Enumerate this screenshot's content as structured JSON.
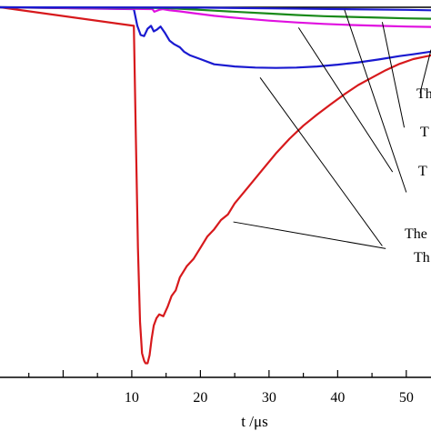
{
  "chart_data": {
    "type": "line",
    "xlabel": "t /μs",
    "ylabel": "",
    "xlim": [
      -9.2,
      53.6
    ],
    "ylim": [
      -1.0,
      0.0
    ],
    "grid": false,
    "legend": "none",
    "x_ticks": [
      10,
      20,
      30,
      40,
      50
    ],
    "x_tick_labels": [
      "10",
      "20",
      "30",
      "40",
      "50"
    ],
    "series": [
      {
        "color": "#d7191c",
        "x": [
          -9.2,
          10.3,
          10.6,
          10.9,
          11.2,
          11.5,
          11.8,
          12.0,
          12.3,
          12.6,
          12.9,
          13.2,
          13.6,
          14.0,
          14.6,
          15.2,
          15.8,
          16.4,
          17.0,
          18.0,
          19.0,
          20.0,
          21.0,
          22.0,
          23.0,
          24.0,
          25.0,
          27.0,
          29.0,
          31.0,
          33.0,
          35.0,
          37.0,
          39.0,
          41.0,
          43.0,
          45.0,
          47.0,
          49.0,
          51.0,
          53.6
        ],
        "y": [
          0.0,
          -0.05,
          -0.35,
          -0.65,
          -0.85,
          -0.935,
          -0.955,
          -0.962,
          -0.962,
          -0.94,
          -0.895,
          -0.86,
          -0.84,
          -0.83,
          -0.835,
          -0.81,
          -0.78,
          -0.765,
          -0.73,
          -0.7,
          -0.68,
          -0.65,
          -0.62,
          -0.6,
          -0.575,
          -0.56,
          -0.53,
          -0.485,
          -0.44,
          -0.395,
          -0.355,
          -0.32,
          -0.29,
          -0.262,
          -0.235,
          -0.21,
          -0.19,
          -0.17,
          -0.153,
          -0.14,
          -0.13
        ]
      },
      {
        "color": "#1a1ad0",
        "x": [
          -9.2,
          10.3,
          10.8,
          11.3,
          11.8,
          12.3,
          12.8,
          13.2,
          13.7,
          14.2,
          14.8,
          15.5,
          16.2,
          17.0,
          17.6,
          18.5,
          20.0,
          22.0,
          25.0,
          28.0,
          31.0,
          34.0,
          37.0,
          40.0,
          43.0,
          46.0,
          49.0,
          51.0,
          53.6
        ],
        "y": [
          0.0,
          -0.005,
          -0.05,
          -0.075,
          -0.078,
          -0.058,
          -0.05,
          -0.065,
          -0.06,
          -0.052,
          -0.068,
          -0.09,
          -0.1,
          -0.108,
          -0.12,
          -0.13,
          -0.14,
          -0.154,
          -0.16,
          -0.163,
          -0.164,
          -0.163,
          -0.16,
          -0.155,
          -0.149,
          -0.141,
          -0.132,
          -0.127,
          -0.12
        ]
      },
      {
        "color": "#e010e0",
        "x": [
          -9.2,
          13.0,
          13.3,
          14.0,
          14.5,
          15.5,
          17.0,
          19.0,
          22.0,
          26.0,
          30.0,
          34.0,
          38.0,
          42.0,
          46.0,
          50.0,
          53.6
        ],
        "y": [
          0.0,
          -0.005,
          -0.012,
          -0.007,
          -0.005,
          -0.008,
          -0.011,
          -0.016,
          -0.023,
          -0.03,
          -0.036,
          -0.041,
          -0.045,
          -0.048,
          -0.05,
          -0.052,
          -0.053
        ]
      },
      {
        "color": "#1a8a1a",
        "x": [
          -9.2,
          14.5,
          18.0,
          22.0,
          26.0,
          30.0,
          34.0,
          38.0,
          42.0,
          46.0,
          50.0,
          53.6
        ],
        "y": [
          0.0,
          -0.002,
          -0.005,
          -0.009,
          -0.013,
          -0.017,
          -0.021,
          -0.024,
          -0.026,
          -0.028,
          -0.03,
          -0.031
        ]
      },
      {
        "color": "#1a1ad0",
        "x": [
          -9.2,
          20.0,
          30.0,
          40.0,
          50.0,
          53.6
        ],
        "y": [
          0.0,
          -0.001,
          -0.003,
          -0.005,
          -0.007,
          -0.008
        ]
      }
    ],
    "annotations": [
      {
        "text": "Th",
        "x_end": 53.6,
        "y_end": -0.115,
        "x_start": 52.0,
        "y_end_label": -0.232
      },
      {
        "text": "T",
        "x_end": 46.5,
        "y_end": -0.04,
        "x_start": 49.7,
        "y_end_label": -0.325
      },
      {
        "text": "T",
        "x_end": 41.0,
        "y_end": -0.007,
        "x_start": 50.0,
        "y_end_label": -0.5
      },
      {
        "text": "The",
        "x_end": 34.3,
        "y_end": -0.055,
        "x_start": 48.0,
        "y_end_label": -0.445
      },
      {
        "text": "Th",
        "x_end": 28.7,
        "y_end": -0.19,
        "x_start": 46.5,
        "y_end_label": -0.645
      },
      {
        "text": "Th",
        "x_end": 24.8,
        "y_end": -0.58,
        "x_start": 47.0,
        "y_end_label": -0.652
      }
    ],
    "callout_labels": [
      "Th",
      "T",
      "T",
      "The",
      "Th"
    ]
  }
}
